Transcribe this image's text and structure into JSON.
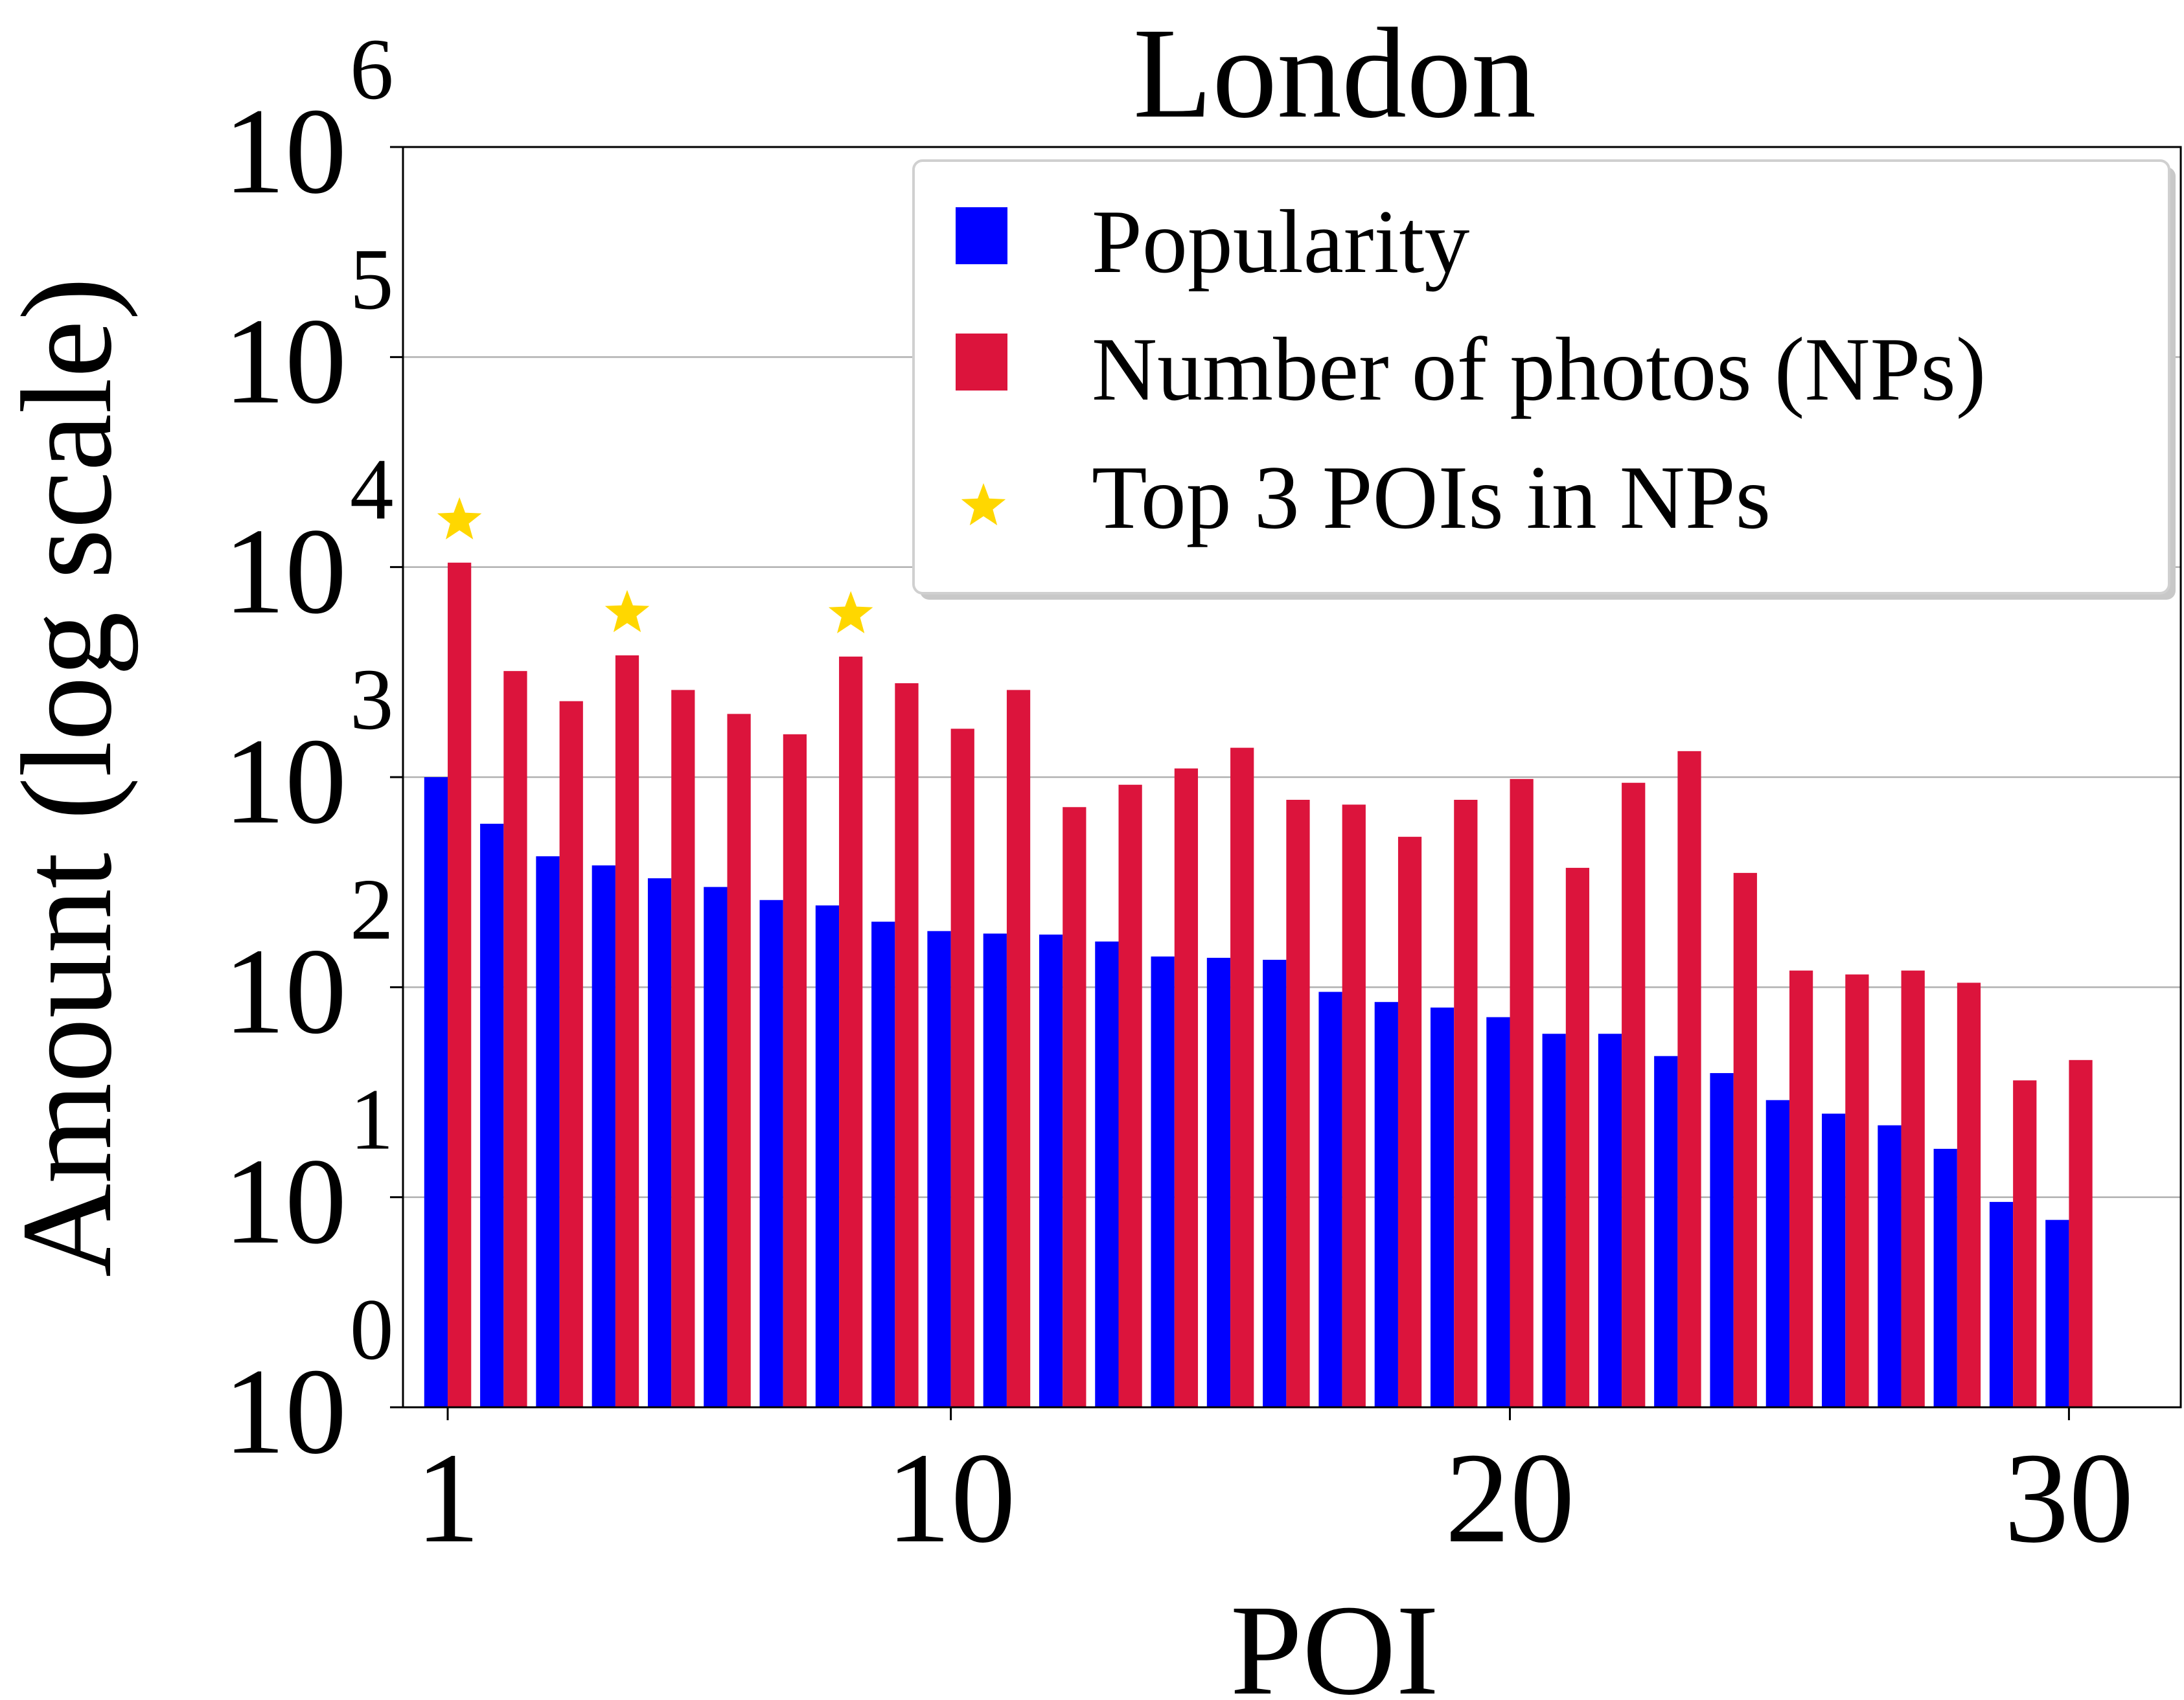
{
  "chart_data": {
    "type": "bar",
    "title": "London",
    "xlabel": "POI",
    "ylabel": "Amount (log scale)",
    "yscale": "log",
    "ylim": [
      1,
      1000000
    ],
    "xlim": [
      0.2,
      32.0
    ],
    "yticks": [
      {
        "value": 1,
        "base": "10",
        "exp": "0"
      },
      {
        "value": 10,
        "base": "10",
        "exp": "1"
      },
      {
        "value": 100,
        "base": "10",
        "exp": "2"
      },
      {
        "value": 1000,
        "base": "10",
        "exp": "3"
      },
      {
        "value": 10000,
        "base": "10",
        "exp": "4"
      },
      {
        "value": 100000,
        "base": "10",
        "exp": "5"
      },
      {
        "value": 1000000,
        "base": "10",
        "exp": "6"
      }
    ],
    "xticks": [
      1,
      10,
      20,
      30
    ],
    "grid": "horizontal",
    "legend_position": "top-right",
    "categories": [
      1,
      2,
      3,
      4,
      5,
      6,
      7,
      8,
      9,
      10,
      11,
      12,
      13,
      14,
      15,
      16,
      17,
      18,
      19,
      20,
      21,
      22,
      23,
      24,
      25,
      26,
      27,
      28,
      29,
      30
    ],
    "series": [
      {
        "name": "Popularity",
        "color": "#0000ff",
        "values": [
          1000,
          600,
          420,
          380,
          330,
          300,
          260,
          245,
          205,
          185,
          180,
          178,
          165,
          140,
          138,
          135,
          95,
          85,
          80,
          72,
          60,
          60,
          47,
          39,
          29,
          25,
          22,
          17,
          9.5,
          7.8
        ]
      },
      {
        "name": "Number of photos (NPs)",
        "color": "#dc143c",
        "values": [
          10500,
          3200,
          2300,
          3800,
          2600,
          2000,
          1600,
          3750,
          2800,
          1700,
          2600,
          720,
          920,
          1100,
          1380,
          780,
          740,
          520,
          780,
          980,
          370,
          940,
          1330,
          350,
          120,
          115,
          120,
          105,
          36,
          45
        ]
      }
    ],
    "markers": {
      "name": "Top 3 POIs in NPs",
      "color": "#ffd700",
      "symbol": "star",
      "poi": [
        1,
        4,
        8
      ]
    }
  }
}
